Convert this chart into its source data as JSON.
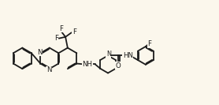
{
  "bg_color": "#fbf7ec",
  "lc": "#1c1c1c",
  "lw": 1.3,
  "fs": 6.2,
  "fig_w": 2.78,
  "fig_h": 1.33,
  "dpi": 100,
  "xlim": [
    -0.5,
    14.5
  ],
  "ylim": [
    3.2,
    9.0
  ]
}
